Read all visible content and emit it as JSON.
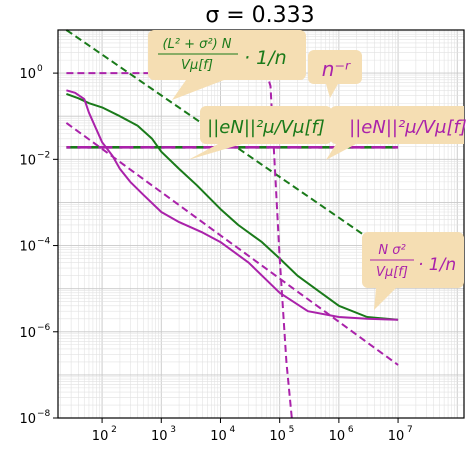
{
  "chart_data": {
    "type": "line",
    "title": "σ = 0.333",
    "xscale": "log",
    "yscale": "log",
    "xlim": [
      18,
      130000000
    ],
    "ylim": [
      1e-08,
      10
    ],
    "grid": true,
    "x_ticks": [
      {
        "value": 100,
        "mantissa": "10",
        "exp": "2"
      },
      {
        "value": 1000,
        "mantissa": "10",
        "exp": "3"
      },
      {
        "value": 10000,
        "mantissa": "10",
        "exp": "4"
      },
      {
        "value": 100000,
        "mantissa": "10",
        "exp": "5"
      },
      {
        "value": 1000000,
        "mantissa": "10",
        "exp": "6"
      },
      {
        "value": 10000000,
        "mantissa": "10",
        "exp": "7"
      }
    ],
    "y_ticks": [
      {
        "value": 1,
        "mantissa": "10",
        "exp": "0"
      },
      {
        "value": 0.01,
        "mantissa": "10",
        "exp": "−2"
      },
      {
        "value": 0.0001,
        "mantissa": "10",
        "exp": "−4"
      },
      {
        "value": 1e-06,
        "mantissa": "10",
        "exp": "−6"
      },
      {
        "value": 1e-08,
        "mantissa": "10",
        "exp": "−8"
      }
    ],
    "series": [
      {
        "color": "#1a7a1a",
        "style": "solid",
        "x": [
          25,
          40,
          60,
          100,
          200,
          400,
          700,
          1000,
          2000,
          4000,
          10000,
          20000,
          50000,
          100000,
          200000,
          500000,
          1000000,
          3000000,
          10000000
        ],
        "y": [
          0.33,
          0.26,
          0.2,
          0.16,
          0.1,
          0.06,
          0.03,
          0.015,
          0.006,
          0.0025,
          0.0007,
          0.0003,
          0.00012,
          5e-05,
          2e-05,
          8e-06,
          4e-06,
          2.2e-06,
          1.9e-06
        ]
      },
      {
        "color": "#aa22aa",
        "style": "solid",
        "x": [
          25,
          35,
          50,
          60,
          80,
          100,
          150,
          200,
          300,
          500,
          1000,
          2000,
          5000,
          10000,
          30000,
          100000,
          300000,
          1000000,
          3000000,
          10000000
        ],
        "y": [
          0.4,
          0.35,
          0.25,
          0.12,
          0.05,
          0.025,
          0.012,
          0.006,
          0.003,
          0.0015,
          0.0006,
          0.00035,
          0.0002,
          0.00012,
          4e-05,
          8e-06,
          3e-06,
          2.2e-06,
          2e-06,
          1.9e-06
        ]
      },
      {
        "color": "#1a7a1a",
        "style": "dashed",
        "x": [
          25,
          10000000
        ],
        "y": [
          10,
          5e-05
        ]
      },
      {
        "color": "#aa22aa",
        "style": "dashed",
        "x": [
          25,
          10000000
        ],
        "y": [
          0.07,
          1.7e-07
        ]
      },
      {
        "color": "#aa22aa",
        "style": "dashed",
        "x": [
          25,
          60000,
          70000,
          100000,
          130000,
          160000
        ],
        "y": [
          1,
          1,
          0.5,
          5e-05,
          2e-07,
          1e-08
        ]
      },
      {
        "color": "#1a7a1a",
        "style": "dashed-long",
        "x": [
          25,
          10000000
        ],
        "y": [
          0.019,
          0.019
        ]
      },
      {
        "color": "#aa22aa",
        "style": "dashed-long",
        "x": [
          25,
          10000000
        ],
        "y": [
          0.019,
          0.019
        ]
      }
    ],
    "annotations": [
      {
        "id": "green-bound",
        "color": "#1a7a1a",
        "numerator": "(L² + σ²) N",
        "denominator": "Vμ[f]",
        "suffix": "· 1/n"
      },
      {
        "id": "power-law",
        "color": "#aa22aa",
        "text": "n⁻ʳ"
      },
      {
        "id": "green-error",
        "color": "#1a7a1a",
        "text": "||eN||²μ/Vμ[f]"
      },
      {
        "id": "magenta-error",
        "color": "#aa22aa",
        "text": "||eN||²μ/Vμ[f]"
      },
      {
        "id": "magenta-bound",
        "color": "#aa22aa",
        "numerator": "N σ²",
        "denominator": "Vμ[f]",
        "suffix": "· 1/n"
      }
    ],
    "annotation_box_color": "#f5deb3"
  }
}
